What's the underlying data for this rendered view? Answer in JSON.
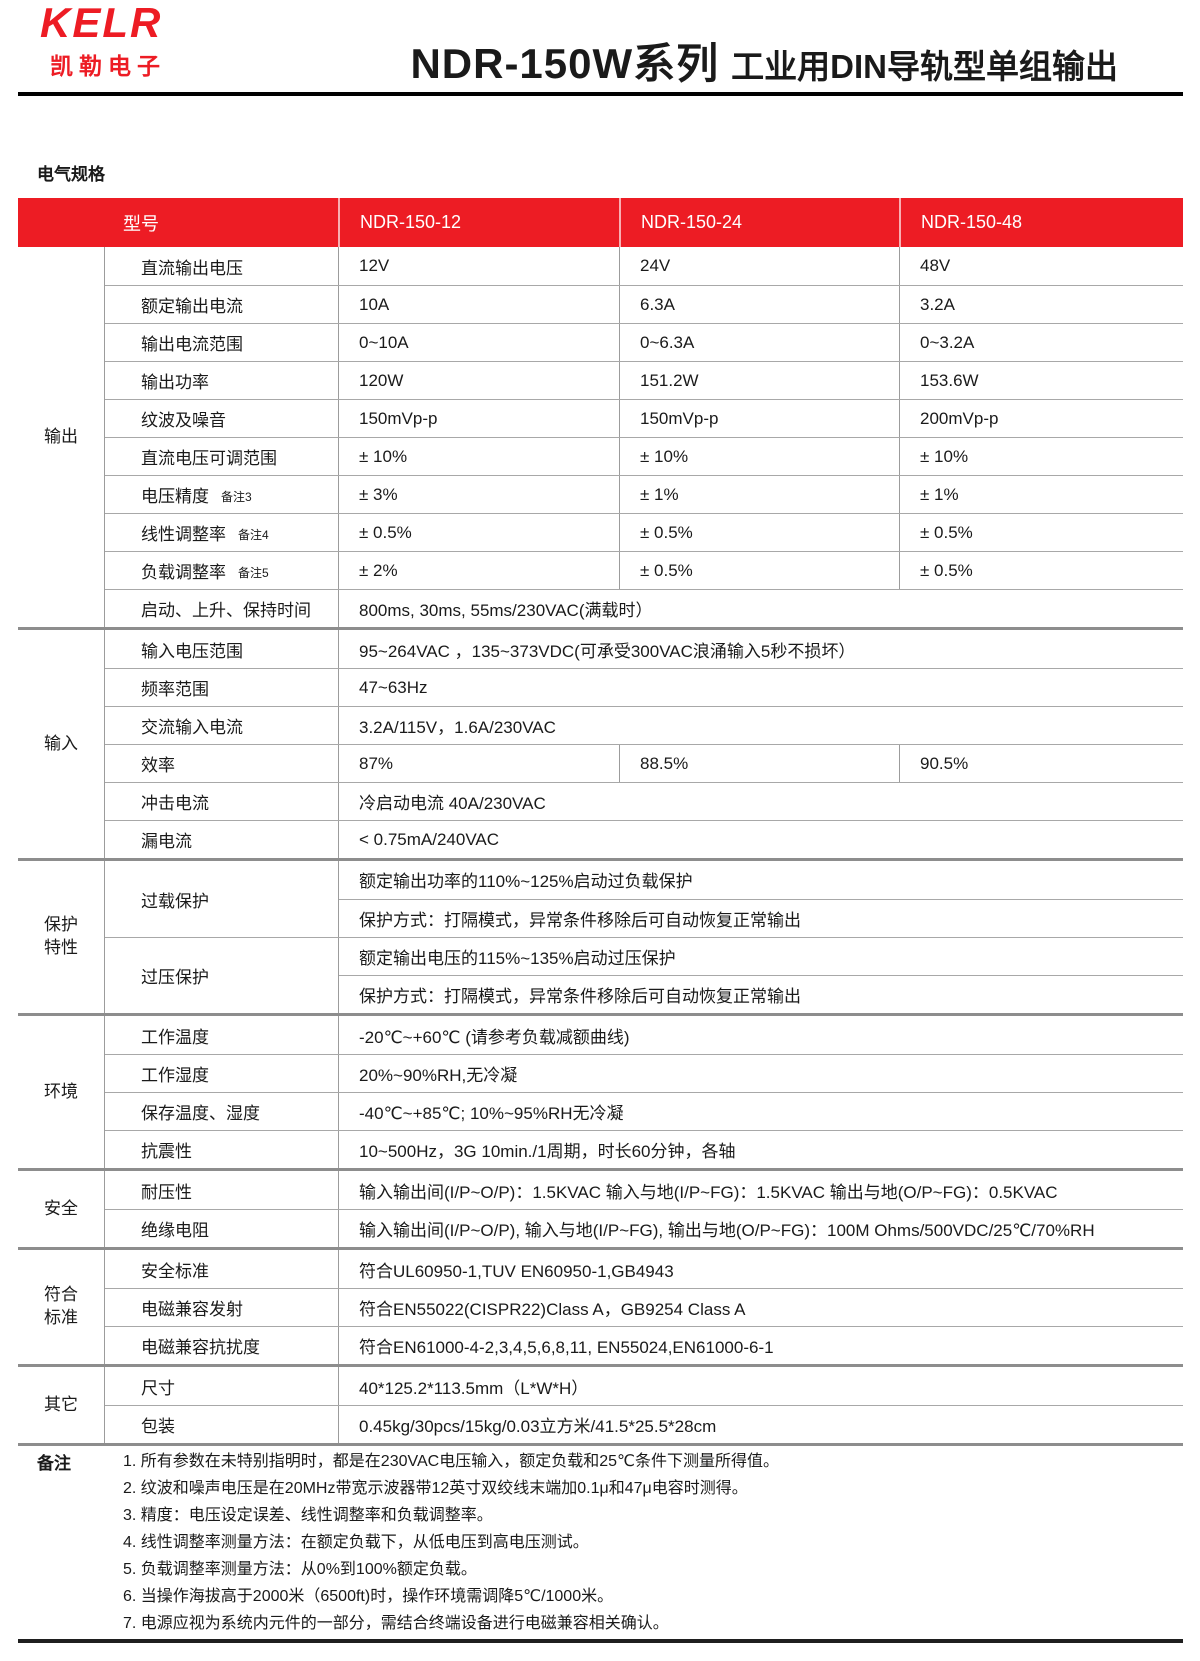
{
  "brand": {
    "logo_text": "KELR",
    "logo_subtext": "凯勒电子",
    "logo_color": "#ED1C24"
  },
  "header": {
    "title_main": "NDR-150W系列",
    "title_sub": "工业用DIN导轨型单组输出"
  },
  "section_title": "电气规格",
  "table": {
    "header_color": "#ED1C24",
    "header": {
      "model_label": "型号",
      "models": [
        "NDR-150-12",
        "NDR-150-24",
        "NDR-150-48"
      ]
    },
    "groups": [
      {
        "name": "输出",
        "rows": [
          {
            "label": "直流输出电压",
            "values": [
              "12V",
              "24V",
              "48V"
            ]
          },
          {
            "label": "额定输出电流",
            "values": [
              "10A",
              "6.3A",
              "3.2A"
            ]
          },
          {
            "label": "输出电流范围",
            "values": [
              "0~10A",
              "0~6.3A",
              "0~3.2A"
            ]
          },
          {
            "label": "输出功率",
            "values": [
              "120W",
              "151.2W",
              "153.6W"
            ]
          },
          {
            "label": "纹波及噪音",
            "values": [
              "150mVp-p",
              "150mVp-p",
              "200mVp-p"
            ]
          },
          {
            "label": "直流电压可调范围",
            "values": [
              "± 10%",
              "± 10%",
              "± 10%"
            ]
          },
          {
            "label": "电压精度",
            "note_ref": "备注3",
            "values": [
              "± 3%",
              "± 1%",
              "± 1%"
            ]
          },
          {
            "label": "线性调整率",
            "note_ref": "备注4",
            "values": [
              "± 0.5%",
              "± 0.5%",
              "± 0.5%"
            ]
          },
          {
            "label": "负载调整率",
            "note_ref": "备注5",
            "values": [
              "± 2%",
              "± 0.5%",
              "± 0.5%"
            ]
          },
          {
            "label": "启动、上升、保持时间",
            "span": "800ms, 30ms, 55ms/230VAC(满载时）"
          }
        ]
      },
      {
        "name": "输入",
        "rows": [
          {
            "label": "输入电压范围",
            "span": "95~264VAC ，135~373VDC(可承受300VAC浪涌输入5秒不损坏）"
          },
          {
            "label": "频率范围",
            "span": "47~63Hz"
          },
          {
            "label": "交流输入电流",
            "span": "3.2A/115V，1.6A/230VAC"
          },
          {
            "label": "效率",
            "values": [
              "87%",
              "88.5%",
              "90.5%"
            ]
          },
          {
            "label": "冲击电流",
            "span": "冷启动电流 40A/230VAC"
          },
          {
            "label": "漏电流",
            "span": "< 0.75mA/240VAC"
          }
        ]
      },
      {
        "name": "保护\n特性",
        "rows": [
          {
            "label": "过载保护",
            "sub": [
              "额定输出功率的110%~125%启动过负载保护",
              "保护方式：打隔模式，异常条件移除后可自动恢复正常输出"
            ]
          },
          {
            "label": "过压保护",
            "sub": [
              "额定输出电压的115%~135%启动过压保护",
              "保护方式：打隔模式，异常条件移除后可自动恢复正常输出"
            ]
          }
        ]
      },
      {
        "name": "环境",
        "rows": [
          {
            "label": "工作温度",
            "span": "-20℃~+60℃ (请参考负载减额曲线)"
          },
          {
            "label": "工作湿度",
            "span": "20%~90%RH,无冷凝"
          },
          {
            "label": "保存温度、湿度",
            "span": "-40℃~+85℃; 10%~95%RH无冷凝"
          },
          {
            "label": "抗震性",
            "span": "10~500Hz，3G 10min./1周期，时长60分钟，各轴"
          }
        ]
      },
      {
        "name": "安全",
        "rows": [
          {
            "label": "耐压性",
            "span": "输入输出间(I/P~O/P)：1.5KVAC  输入与地(I/P~FG)：1.5KVAC  输出与地(O/P~FG)：0.5KVAC"
          },
          {
            "label": "绝缘电阻",
            "span": "输入输出间(I/P~O/P), 输入与地(I/P~FG), 输出与地(O/P~FG)：100M Ohms/500VDC/25℃/70%RH"
          }
        ]
      },
      {
        "name": "符合\n标准",
        "rows": [
          {
            "label": "安全标准",
            "span": "符合UL60950-1,TUV EN60950-1,GB4943"
          },
          {
            "label": "电磁兼容发射",
            "span": "符合EN55022(CISPR22)Class A，GB9254 Class A"
          },
          {
            "label": "电磁兼容抗扰度",
            "span": "符合EN61000-4-2,3,4,5,6,8,11, EN55024,EN61000-6-1"
          }
        ]
      },
      {
        "name": "其它",
        "rows": [
          {
            "label": "尺寸",
            "span": "40*125.2*113.5mm（L*W*H）"
          },
          {
            "label": "包装",
            "span": "0.45kg/30pcs/15kg/0.03立方米/41.5*25.5*28cm"
          }
        ]
      }
    ]
  },
  "notes": {
    "label": "备注",
    "items": [
      "1. 所有参数在未特别指明时，都是在230VAC电压输入，额定负载和25℃条件下测量所得值。",
      "2. 纹波和噪声电压是在20MHz带宽示波器带12英寸双绞线末端加0.1μ和47μ电容时测得。",
      "3. 精度：电压设定误差、线性调整率和负载调整率。",
      "4. 线性调整率测量方法：在额定负载下，从低电压到高电压测试。",
      "5. 负载调整率测量方法：从0%到100%额定负载。",
      "6. 当操作海拔高于2000米（6500ft)时，操作环境需调降5℃/1000米。",
      "7. 电源应视为系统内元件的一部分，需结合终端设备进行电磁兼容相关确认。"
    ]
  }
}
